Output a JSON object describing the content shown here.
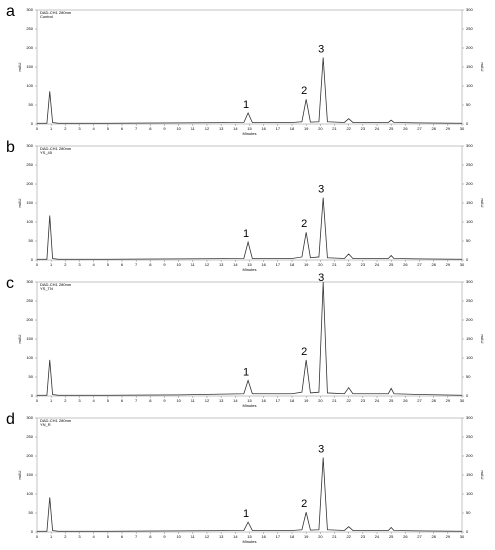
{
  "chart_data": [
    {
      "type": "line",
      "panel_label": "a",
      "title": "DAD-CH1 280nm",
      "subtitle": "Control",
      "x_label": "Minutes",
      "y_label": "mAU",
      "annotations": [
        "1",
        "2",
        "3"
      ],
      "x": [
        0,
        0.7,
        0.9,
        1.1,
        1.5,
        5,
        10,
        14.6,
        14.9,
        15.2,
        18,
        18.7,
        19.0,
        19.3,
        19.9,
        20.2,
        20.5,
        21.7,
        22.0,
        22.3,
        24.8,
        25.0,
        25.2,
        27,
        30
      ],
      "series": [
        {
          "color": "#333333",
          "values": [
            2,
            2,
            86,
            4,
            2,
            2,
            3,
            4,
            29,
            4,
            4,
            6,
            65,
            5,
            6,
            175,
            6,
            4,
            14,
            4,
            4,
            10,
            4,
            3,
            2
          ]
        }
      ],
      "xlim": [
        0,
        30
      ],
      "xticks": [
        0,
        1,
        2,
        3,
        4,
        5,
        6,
        7,
        8,
        9,
        10,
        11,
        12,
        13,
        14,
        15,
        16,
        17,
        18,
        19,
        20,
        21,
        22,
        23,
        24,
        25,
        26,
        27,
        28,
        29,
        30
      ],
      "ylim": [
        0,
        300
      ],
      "yticks": [
        0,
        50,
        100,
        150,
        200,
        250,
        300
      ]
    },
    {
      "type": "line",
      "panel_label": "b",
      "title": "DAD-CH1 280nm",
      "subtitle": "YS_45",
      "x_label": "Minutes",
      "y_label": "mAU",
      "annotations": [
        "1",
        "2",
        "3"
      ],
      "x": [
        0,
        0.7,
        0.9,
        1.1,
        1.5,
        5,
        10,
        14.6,
        14.9,
        15.2,
        18,
        18.7,
        19.0,
        19.3,
        19.9,
        20.2,
        20.5,
        21.7,
        22.0,
        22.3,
        24.8,
        25.0,
        25.2,
        27,
        30
      ],
      "series": [
        {
          "color": "#333333",
          "values": [
            2,
            2,
            117,
            4,
            2,
            2,
            3,
            4,
            47,
            4,
            4,
            8,
            73,
            6,
            8,
            164,
            6,
            4,
            16,
            4,
            4,
            12,
            4,
            3,
            2
          ]
        }
      ],
      "xlim": [
        0,
        30
      ],
      "xticks": [
        0,
        1,
        2,
        3,
        4,
        5,
        6,
        7,
        8,
        9,
        10,
        11,
        12,
        13,
        14,
        15,
        16,
        17,
        18,
        19,
        20,
        21,
        22,
        23,
        24,
        25,
        26,
        27,
        28,
        29,
        30
      ],
      "ylim": [
        0,
        300
      ],
      "yticks": [
        0,
        50,
        100,
        150,
        200,
        250,
        300
      ]
    },
    {
      "type": "line",
      "panel_label": "c",
      "title": "DAD-CH1 280nm",
      "subtitle": "YS_TN",
      "x_label": "Minutes",
      "y_label": "mAU",
      "annotations": [
        "1",
        "2",
        "3"
      ],
      "x": [
        0,
        0.7,
        0.9,
        1.1,
        1.5,
        5,
        10,
        14.6,
        14.9,
        15.2,
        18,
        18.7,
        19.0,
        19.3,
        19.9,
        20.2,
        20.5,
        21.7,
        22.0,
        22.3,
        24.8,
        25.0,
        25.2,
        27,
        30
      ],
      "series": [
        {
          "color": "#333333",
          "values": [
            2,
            2,
            95,
            4,
            2,
            2,
            3,
            6,
            41,
            6,
            6,
            10,
            95,
            8,
            10,
            300,
            8,
            6,
            22,
            6,
            6,
            20,
            6,
            4,
            2
          ]
        }
      ],
      "xlim": [
        0,
        30
      ],
      "xticks": [
        0,
        1,
        2,
        3,
        4,
        5,
        6,
        7,
        8,
        9,
        10,
        11,
        12,
        13,
        14,
        15,
        16,
        17,
        18,
        19,
        20,
        21,
        22,
        23,
        24,
        25,
        26,
        27,
        28,
        29,
        30
      ],
      "ylim": [
        0,
        300
      ],
      "yticks": [
        0,
        50,
        100,
        150,
        200,
        250,
        300
      ]
    },
    {
      "type": "line",
      "panel_label": "d",
      "title": "DAD-CH1 280nm",
      "subtitle": "YN_R",
      "x_label": "Minutes",
      "y_label": "mAU",
      "annotations": [
        "1",
        "2",
        "3"
      ],
      "x": [
        0,
        0.7,
        0.9,
        1.1,
        1.5,
        5,
        10,
        14.6,
        14.9,
        15.2,
        18,
        18.7,
        19.0,
        19.3,
        19.9,
        20.2,
        20.5,
        21.7,
        22.0,
        22.3,
        24.8,
        25.0,
        25.2,
        27,
        30
      ],
      "series": [
        {
          "color": "#333333",
          "values": [
            2,
            2,
            91,
            4,
            2,
            2,
            3,
            4,
            26,
            4,
            4,
            6,
            52,
            5,
            6,
            196,
            6,
            4,
            14,
            4,
            4,
            12,
            4,
            3,
            2
          ]
        }
      ],
      "xlim": [
        0,
        30
      ],
      "xticks": [
        0,
        1,
        2,
        3,
        4,
        5,
        6,
        7,
        8,
        9,
        10,
        11,
        12,
        13,
        14,
        15,
        16,
        17,
        18,
        19,
        20,
        21,
        22,
        23,
        24,
        25,
        26,
        27,
        28,
        29,
        30
      ],
      "ylim": [
        0,
        300
      ],
      "yticks": [
        0,
        50,
        100,
        150,
        200,
        250,
        300
      ]
    }
  ]
}
